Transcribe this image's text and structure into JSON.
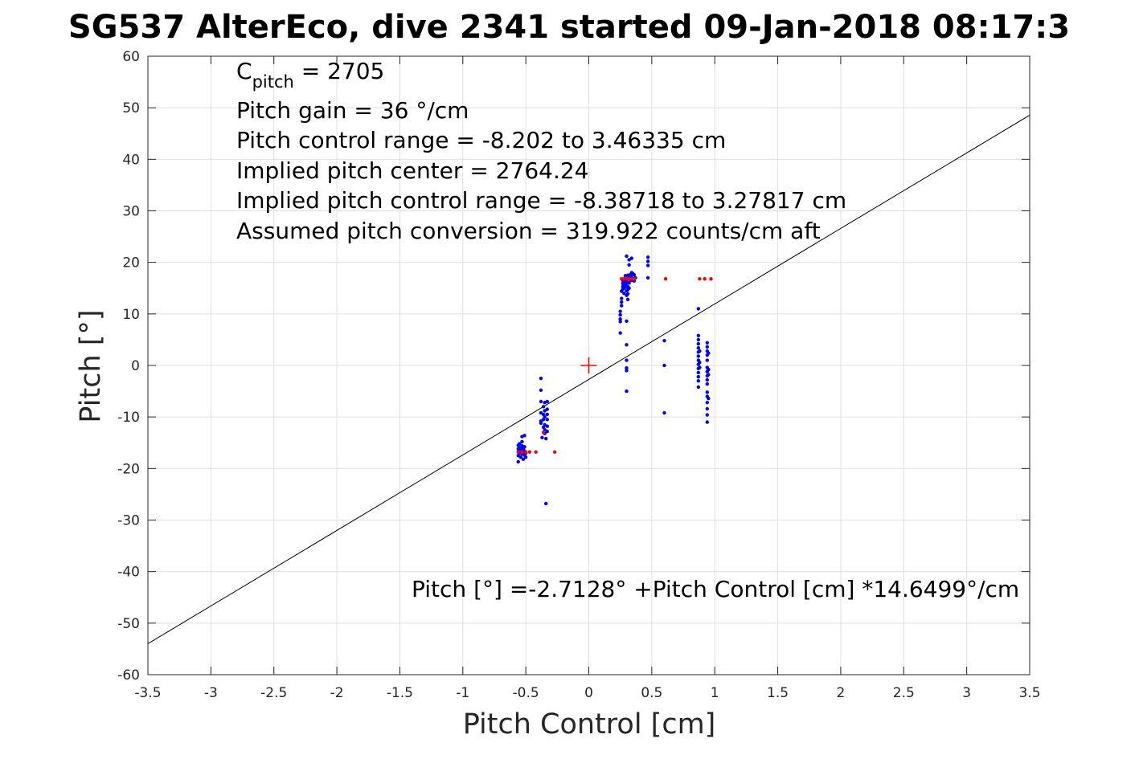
{
  "chart_data": {
    "type": "scatter",
    "title": "SG537 AlterEco, dive 2341 started 09-Jan-2018 08:17:3",
    "xlabel": "Pitch Control [cm]",
    "ylabel": "Pitch [°]",
    "xlim": [
      -3.5,
      3.5
    ],
    "ylim": [
      -60,
      60
    ],
    "xticks": [
      -3.5,
      -3,
      -2.5,
      -2,
      -1.5,
      -1,
      -0.5,
      0,
      0.5,
      1,
      1.5,
      2,
      2.5,
      3,
      3.5
    ],
    "xtick_labels": [
      "-3.5",
      "-3",
      "-2.5",
      "-2",
      "-1.5",
      "-1",
      "-0.5",
      "0",
      "0.5",
      "1",
      "1.5",
      "2",
      "2.5",
      "3",
      "3.5"
    ],
    "yticks": [
      -60,
      -50,
      -40,
      -30,
      -20,
      -10,
      0,
      10,
      20,
      30,
      40,
      50,
      60
    ],
    "ytick_labels": [
      "-60",
      "-50",
      "-40",
      "-30",
      "-20",
      "-10",
      "0",
      "10",
      "20",
      "30",
      "40",
      "50",
      "60"
    ],
    "grid": true,
    "colors": {
      "observed": "#0000ff",
      "rejected": "#ff0000",
      "fit_line": "#000000",
      "center_marker": "#ff0000"
    },
    "annotations": {
      "c_pitch_prefix": "C",
      "c_pitch_sub": "pitch",
      "c_pitch_value": " = 2705",
      "lines": [
        "Pitch gain = 36 °/cm",
        "Pitch control range = -8.202 to 3.46335 cm",
        "Implied pitch center = 2764.24",
        "Implied pitch control range = -8.38718 to 3.27817 cm",
        "Assumed pitch conversion = 319.922 counts/cm aft"
      ],
      "fit_equation": "Pitch [°] =-2.7128° +Pitch Control [cm] *14.6499°/cm"
    },
    "fit": {
      "intercept": -2.7128,
      "slope": 14.6499
    },
    "center_marker": {
      "x": 0,
      "y": 0
    },
    "series": [
      {
        "color_key": "observed",
        "points": [
          [
            -0.56,
            -18.7
          ],
          [
            -0.56,
            -17.5
          ],
          [
            -0.56,
            -16.8
          ],
          [
            -0.56,
            -16.2
          ],
          [
            -0.56,
            -15.5
          ],
          [
            -0.55,
            -17.0
          ],
          [
            -0.55,
            -16.0
          ],
          [
            -0.55,
            -15.2
          ],
          [
            -0.54,
            -17.8
          ],
          [
            -0.54,
            -16.6
          ],
          [
            -0.54,
            -16.0
          ],
          [
            -0.53,
            -17.2
          ],
          [
            -0.53,
            -16.4
          ],
          [
            -0.53,
            -15.6
          ],
          [
            -0.53,
            -14.8
          ],
          [
            -0.53,
            -13.8
          ],
          [
            -0.52,
            -18.2
          ],
          [
            -0.52,
            -17.0
          ],
          [
            -0.52,
            -16.2
          ],
          [
            -0.51,
            -17.4
          ],
          [
            -0.51,
            -16.6
          ],
          [
            -0.51,
            -15.8
          ],
          [
            -0.51,
            -13.6
          ],
          [
            -0.5,
            -17.8
          ],
          [
            -0.5,
            -17.0
          ],
          [
            -0.38,
            -2.5
          ],
          [
            -0.38,
            -4.8
          ],
          [
            -0.38,
            -7.0
          ],
          [
            -0.38,
            -9.2
          ],
          [
            -0.38,
            -10.8
          ],
          [
            -0.38,
            -11.2
          ],
          [
            -0.37,
            -14.0
          ],
          [
            -0.36,
            -8.0
          ],
          [
            -0.36,
            -9.5
          ],
          [
            -0.36,
            -10.5
          ],
          [
            -0.36,
            -12.0
          ],
          [
            -0.35,
            -7.2
          ],
          [
            -0.35,
            -8.8
          ],
          [
            -0.35,
            -10.0
          ],
          [
            -0.35,
            -11.5
          ],
          [
            -0.35,
            -12.5
          ],
          [
            -0.35,
            -13.2
          ],
          [
            -0.34,
            -26.8
          ],
          [
            -0.34,
            -14.2
          ],
          [
            -0.33,
            -7.0
          ],
          [
            -0.33,
            -8.5
          ],
          [
            -0.33,
            -9.5
          ],
          [
            -0.33,
            -10.5
          ],
          [
            -0.33,
            -11.8
          ],
          [
            -0.33,
            -12.8
          ],
          [
            0.25,
            6.3
          ],
          [
            0.25,
            8.5
          ],
          [
            0.25,
            9.0
          ],
          [
            0.25,
            9.8
          ],
          [
            0.25,
            10.5
          ],
          [
            0.26,
            11.6
          ],
          [
            0.26,
            12.3
          ],
          [
            0.26,
            13.0
          ],
          [
            0.26,
            14.4
          ],
          [
            0.27,
            14.8
          ],
          [
            0.27,
            15.3
          ],
          [
            0.27,
            15.9
          ],
          [
            0.27,
            16.5
          ],
          [
            0.28,
            14.0
          ],
          [
            0.28,
            15.0
          ],
          [
            0.28,
            15.6
          ],
          [
            0.28,
            16.2
          ],
          [
            0.28,
            16.8
          ],
          [
            0.29,
            15.2
          ],
          [
            0.29,
            16.0
          ],
          [
            0.29,
            16.6
          ],
          [
            0.29,
            17.4
          ],
          [
            0.3,
            13.6
          ],
          [
            0.3,
            14.5
          ],
          [
            0.3,
            15.4
          ],
          [
            0.3,
            16.0
          ],
          [
            0.3,
            16.7
          ],
          [
            0.3,
            21.2
          ],
          [
            0.3,
            -0.5
          ],
          [
            0.3,
            -1.0
          ],
          [
            0.3,
            1.0
          ],
          [
            0.3,
            4.0
          ],
          [
            0.3,
            -5.0
          ],
          [
            0.3,
            8.6
          ],
          [
            0.31,
            12.8
          ],
          [
            0.31,
            13.9
          ],
          [
            0.31,
            14.7
          ],
          [
            0.31,
            15.3
          ],
          [
            0.31,
            16.1
          ],
          [
            0.31,
            16.9
          ],
          [
            0.31,
            17.5
          ],
          [
            0.32,
            15.0
          ],
          [
            0.32,
            16.0
          ],
          [
            0.32,
            17.0
          ],
          [
            0.32,
            19.5
          ],
          [
            0.32,
            20.5
          ],
          [
            0.33,
            16.6
          ],
          [
            0.33,
            17.6
          ],
          [
            0.34,
            18.0
          ],
          [
            0.34,
            17.2
          ],
          [
            0.34,
            16.5
          ],
          [
            0.34,
            20.8
          ],
          [
            0.35,
            17.8
          ],
          [
            0.35,
            16.8
          ],
          [
            0.36,
            17.6
          ],
          [
            0.36,
            16.4
          ],
          [
            0.37,
            17.0
          ],
          [
            0.47,
            21.0
          ],
          [
            0.47,
            20.2
          ],
          [
            0.47,
            19.4
          ],
          [
            0.47,
            17.0
          ],
          [
            0.6,
            4.8
          ],
          [
            0.6,
            0.0
          ],
          [
            0.6,
            -9.2
          ],
          [
            0.87,
            11.0
          ],
          [
            0.87,
            5.8
          ],
          [
            0.87,
            5.0
          ],
          [
            0.87,
            4.2
          ],
          [
            0.87,
            3.4
          ],
          [
            0.87,
            2.6
          ],
          [
            0.87,
            1.8
          ],
          [
            0.87,
            1.0
          ],
          [
            0.87,
            0.2
          ],
          [
            0.87,
            -0.6
          ],
          [
            0.87,
            -1.4
          ],
          [
            0.87,
            -2.2
          ],
          [
            0.87,
            -3.0
          ],
          [
            0.87,
            -4.2
          ],
          [
            0.88,
            2.8
          ],
          [
            0.88,
            0.6
          ],
          [
            0.88,
            -0.4
          ],
          [
            0.94,
            4.4
          ],
          [
            0.94,
            3.6
          ],
          [
            0.94,
            2.8
          ],
          [
            0.94,
            2.0
          ],
          [
            0.94,
            1.0
          ],
          [
            0.94,
            -0.4
          ],
          [
            0.94,
            -1.2
          ],
          [
            0.94,
            -2.0
          ],
          [
            0.94,
            -2.8
          ],
          [
            0.94,
            -3.6
          ],
          [
            0.94,
            -5.2
          ],
          [
            0.94,
            -6.0
          ],
          [
            0.94,
            -7.2
          ],
          [
            0.94,
            -8.4
          ],
          [
            0.94,
            -9.6
          ],
          [
            0.94,
            -11.0
          ],
          [
            0.95,
            2.4
          ],
          [
            0.95,
            -0.8
          ],
          [
            0.95,
            -1.8
          ],
          [
            0.95,
            -6.4
          ]
        ]
      },
      {
        "color_key": "rejected",
        "points": [
          [
            -0.56,
            -16.8
          ],
          [
            -0.53,
            -16.8
          ],
          [
            -0.5,
            -16.8
          ],
          [
            -0.47,
            -16.8
          ],
          [
            -0.42,
            -16.8
          ],
          [
            -0.36,
            -13.0
          ],
          [
            -0.27,
            -16.8
          ],
          [
            0.26,
            16.8
          ],
          [
            0.28,
            16.8
          ],
          [
            0.3,
            16.8
          ],
          [
            0.32,
            16.8
          ],
          [
            0.34,
            16.8
          ],
          [
            0.36,
            16.8
          ],
          [
            0.61,
            16.8
          ],
          [
            0.88,
            16.8
          ],
          [
            0.92,
            16.8
          ],
          [
            0.97,
            16.8
          ]
        ]
      }
    ]
  }
}
